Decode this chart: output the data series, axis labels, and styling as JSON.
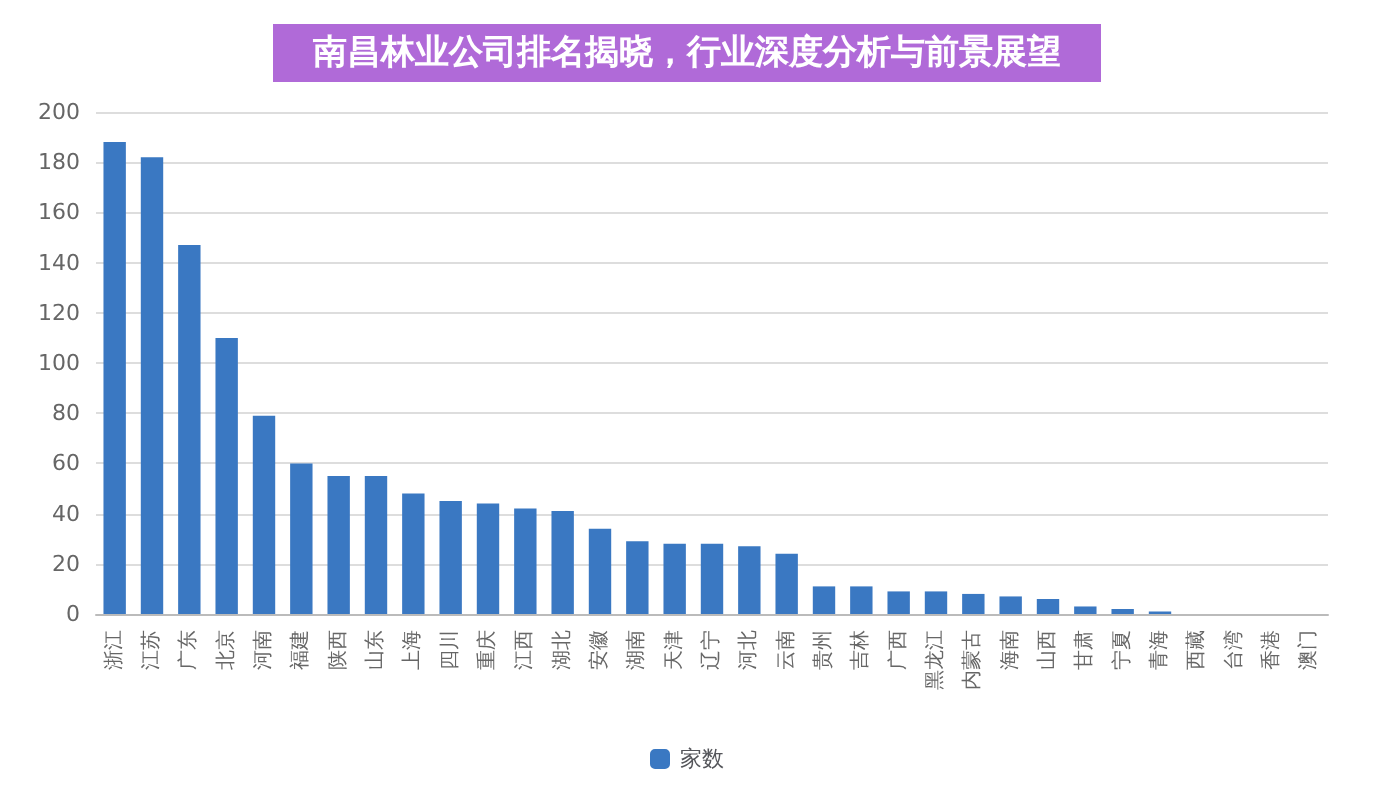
{
  "chart_data": {
    "type": "bar",
    "title": "南昌林业公司排名揭晓，行业深度分析与前景展望",
    "categories": [
      "浙江",
      "江苏",
      "广东",
      "北京",
      "河南",
      "福建",
      "陕西",
      "山东",
      "上海",
      "四川",
      "重庆",
      "江西",
      "湖北",
      "安徽",
      "湖南",
      "天津",
      "辽宁",
      "河北",
      "云南",
      "贵州",
      "吉林",
      "广西",
      "黑龙江",
      "内蒙古",
      "海南",
      "山西",
      "甘肃",
      "宁夏",
      "青海",
      "西藏",
      "台湾",
      "香港",
      "澳门"
    ],
    "series": [
      {
        "name": "家数",
        "color": "#3a78c2",
        "values": [
          188,
          182,
          147,
          110,
          79,
          60,
          55,
          55,
          48,
          45,
          44,
          42,
          41,
          34,
          29,
          28,
          28,
          27,
          24,
          11,
          11,
          9,
          9,
          8,
          7,
          6,
          3,
          2,
          1,
          0,
          0,
          0,
          0
        ]
      }
    ],
    "ylim": [
      0,
      200
    ],
    "yticks": [
      0,
      20,
      40,
      60,
      80,
      100,
      120,
      140,
      160,
      180,
      200
    ],
    "grid": "y",
    "legend": "bottom"
  }
}
